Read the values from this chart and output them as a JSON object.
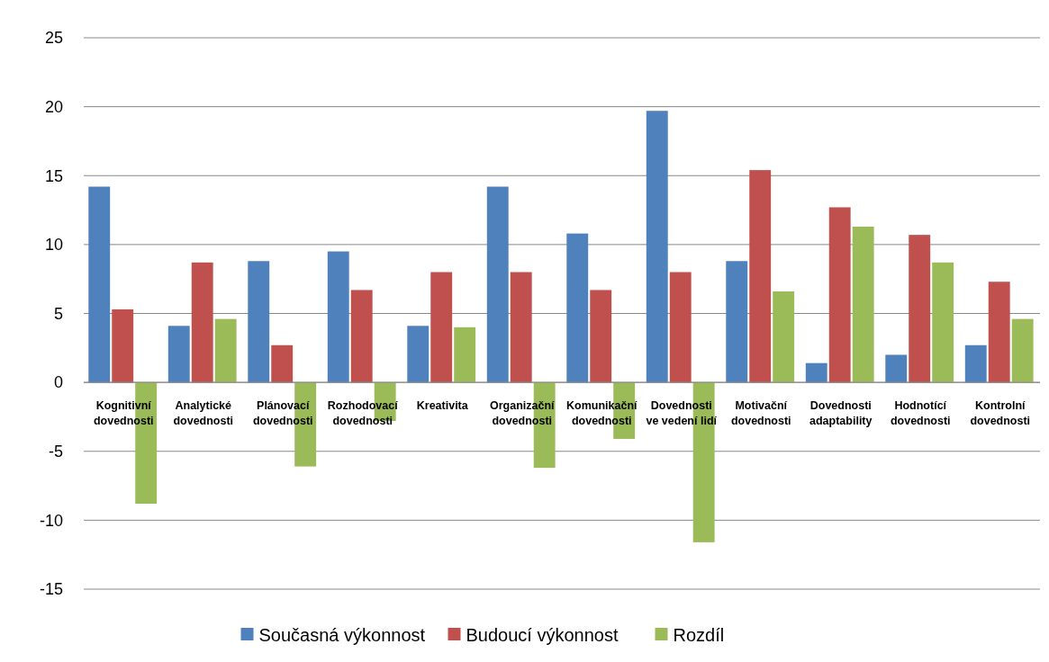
{
  "chart_data": {
    "type": "bar",
    "categories": [
      "Kognitivní dovednosti",
      "Analytické dovednosti",
      "Plánovací dovednosti",
      "Rozhodovací dovednosti",
      "Kreativita",
      "Organizační dovednosti",
      "Komunikační dovednosti",
      "Dovednosti ve vedení lidí",
      "Motivační dovednosti",
      "Dovednosti adaptability",
      "Hodnotící dovednosti",
      "Kontrolní dovednosti"
    ],
    "series": [
      {
        "name": "Současná výkonnost",
        "color": "#4f81bd",
        "values": [
          14.2,
          4.1,
          8.8,
          9.5,
          4.1,
          14.2,
          10.8,
          19.7,
          8.8,
          1.4,
          2.0,
          2.7
        ]
      },
      {
        "name": "Budoucí výkonnost",
        "color": "#c0504d",
        "values": [
          5.3,
          8.7,
          2.7,
          6.7,
          8.0,
          8.0,
          6.7,
          8.0,
          15.4,
          12.7,
          10.7,
          7.3
        ]
      },
      {
        "name": "Rozdíl",
        "color": "#9bbb59",
        "values": [
          -8.8,
          4.6,
          -6.1,
          -2.8,
          4.0,
          -6.2,
          -4.1,
          -11.6,
          6.6,
          11.3,
          8.7,
          4.6
        ]
      }
    ],
    "ylim": [
      -15,
      25
    ],
    "yticks": [
      -15,
      -10,
      -5,
      0,
      5,
      10,
      15,
      20,
      25
    ],
    "grid": "y",
    "legend": "bottom"
  }
}
